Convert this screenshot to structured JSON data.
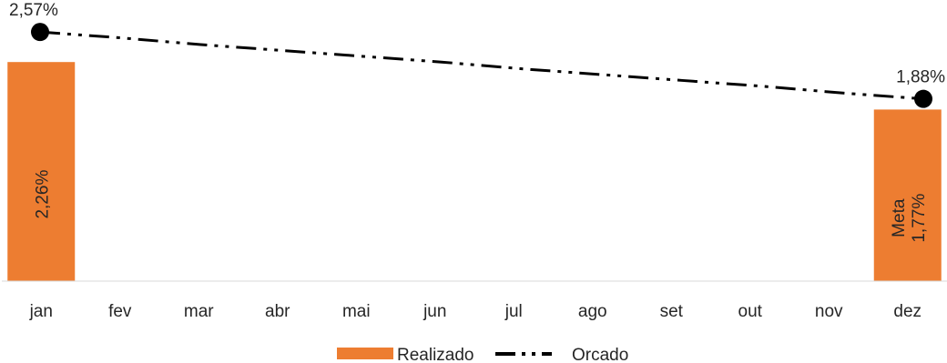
{
  "chart_data": {
    "type": "bar",
    "categories": [
      "jan",
      "fev",
      "mar",
      "abr",
      "mai",
      "jun",
      "jul",
      "ago",
      "set",
      "out",
      "nov",
      "dez"
    ],
    "series": [
      {
        "name": "Realizado",
        "type": "bar",
        "color": "#ED7D31",
        "values": [
          2.26,
          null,
          null,
          null,
          null,
          null,
          null,
          null,
          null,
          null,
          null,
          1.77
        ],
        "labels": [
          "2,26%",
          null,
          null,
          null,
          null,
          null,
          null,
          null,
          null,
          null,
          null,
          "Meta 1,77%"
        ]
      },
      {
        "name": "Orcado",
        "type": "line",
        "style": "dash-dot-dot",
        "color": "#000000",
        "values": [
          2.57,
          2.51,
          2.44,
          2.38,
          2.32,
          2.26,
          2.19,
          2.13,
          2.07,
          2.01,
          1.94,
          1.88
        ],
        "labels": [
          "2,57%",
          null,
          null,
          null,
          null,
          null,
          null,
          null,
          null,
          null,
          null,
          "1,88%"
        ]
      }
    ],
    "ylim": [
      0,
      2.9
    ],
    "grid": false,
    "legend": "bottom",
    "legend_entries": [
      "Realizado",
      "Orcado"
    ]
  }
}
